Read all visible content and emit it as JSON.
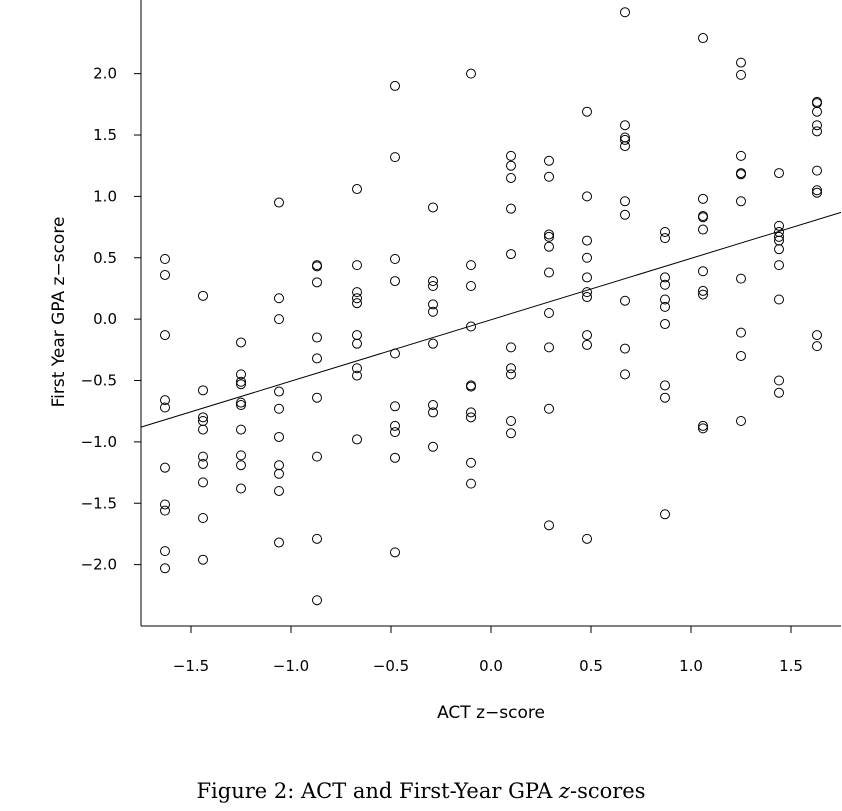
{
  "caption": {
    "prefix": "Figure 2: ACT and First-Year GPA ",
    "math": "z",
    "suffix": "-scores"
  },
  "chart_data": {
    "type": "scatter",
    "xlabel": "ACT z−score",
    "ylabel": "First Year GPA z−score",
    "xlim": [
      -1.75,
      1.75
    ],
    "ylim": [
      -2.5,
      2.6
    ],
    "xticks": [
      -1.5,
      -1.0,
      -0.5,
      0.0,
      0.5,
      1.0,
      1.5
    ],
    "xtick_labels": [
      "−1.5",
      "−1.0",
      "−0.5",
      "0.0",
      "0.5",
      "1.0",
      "1.5"
    ],
    "yticks": [
      -2.0,
      -1.5,
      -1.0,
      -0.5,
      0.0,
      0.5,
      1.0,
      1.5,
      2.0
    ],
    "ytick_labels": [
      "−2.0",
      "−1.5",
      "−1.0",
      "−0.5",
      "0.0",
      "0.5",
      "1.0",
      "1.5",
      "2.0"
    ],
    "grid": false,
    "regression_line": {
      "x": [
        -1.75,
        1.75
      ],
      "y": [
        -0.88,
        0.87
      ]
    },
    "series": [
      {
        "points": [
          [
            -1.63,
            0.49
          ],
          [
            -1.63,
            0.36
          ],
          [
            -1.63,
            -0.13
          ],
          [
            -1.63,
            -0.66
          ],
          [
            -1.63,
            -0.72
          ],
          [
            -1.63,
            -1.21
          ],
          [
            -1.63,
            -1.51
          ],
          [
            -1.63,
            -1.56
          ],
          [
            -1.63,
            -1.89
          ],
          [
            -1.63,
            -2.03
          ],
          [
            -1.44,
            0.19
          ],
          [
            -1.44,
            -0.58
          ],
          [
            -1.44,
            -0.8
          ],
          [
            -1.44,
            -0.83
          ],
          [
            -1.44,
            -0.9
          ],
          [
            -1.44,
            -1.12
          ],
          [
            -1.44,
            -1.18
          ],
          [
            -1.44,
            -1.33
          ],
          [
            -1.44,
            -1.62
          ],
          [
            -1.44,
            -1.96
          ],
          [
            -1.25,
            -0.19
          ],
          [
            -1.25,
            -0.45
          ],
          [
            -1.25,
            -0.51
          ],
          [
            -1.25,
            -0.53
          ],
          [
            -1.25,
            -0.68
          ],
          [
            -1.25,
            -0.7
          ],
          [
            -1.25,
            -0.9
          ],
          [
            -1.25,
            -1.11
          ],
          [
            -1.25,
            -1.19
          ],
          [
            -1.25,
            -1.38
          ],
          [
            -1.06,
            0.95
          ],
          [
            -1.06,
            0.17
          ],
          [
            -1.06,
            0.0
          ],
          [
            -1.06,
            -0.59
          ],
          [
            -1.06,
            -0.73
          ],
          [
            -1.06,
            -0.96
          ],
          [
            -1.06,
            -1.19
          ],
          [
            -1.06,
            -1.26
          ],
          [
            -1.06,
            -1.4
          ],
          [
            -1.06,
            -1.82
          ],
          [
            -0.87,
            0.44
          ],
          [
            -0.87,
            0.43
          ],
          [
            -0.87,
            0.3
          ],
          [
            -0.87,
            -0.15
          ],
          [
            -0.87,
            -0.32
          ],
          [
            -0.87,
            -0.64
          ],
          [
            -0.87,
            -1.12
          ],
          [
            -0.87,
            -1.79
          ],
          [
            -0.87,
            -2.29
          ],
          [
            -0.67,
            1.06
          ],
          [
            -0.67,
            0.44
          ],
          [
            -0.67,
            0.22
          ],
          [
            -0.67,
            0.17
          ],
          [
            -0.67,
            0.13
          ],
          [
            -0.67,
            -0.13
          ],
          [
            -0.67,
            -0.2
          ],
          [
            -0.67,
            -0.4
          ],
          [
            -0.67,
            -0.46
          ],
          [
            -0.67,
            -0.98
          ],
          [
            -0.48,
            1.9
          ],
          [
            -0.48,
            1.32
          ],
          [
            -0.48,
            0.49
          ],
          [
            -0.48,
            0.31
          ],
          [
            -0.48,
            -0.28
          ],
          [
            -0.48,
            -0.71
          ],
          [
            -0.48,
            -0.87
          ],
          [
            -0.48,
            -0.92
          ],
          [
            -0.48,
            -1.13
          ],
          [
            -0.48,
            -1.9
          ],
          [
            -0.29,
            0.91
          ],
          [
            -0.29,
            0.31
          ],
          [
            -0.29,
            0.27
          ],
          [
            -0.29,
            0.12
          ],
          [
            -0.29,
            0.06
          ],
          [
            -0.29,
            -0.2
          ],
          [
            -0.29,
            -0.7
          ],
          [
            -0.29,
            -0.76
          ],
          [
            -0.29,
            -1.04
          ],
          [
            -0.1,
            2.0
          ],
          [
            -0.1,
            0.44
          ],
          [
            -0.1,
            0.27
          ],
          [
            -0.1,
            -0.06
          ],
          [
            -0.1,
            -0.54
          ],
          [
            -0.1,
            -0.55
          ],
          [
            -0.1,
            -0.76
          ],
          [
            -0.1,
            -0.8
          ],
          [
            -0.1,
            -1.17
          ],
          [
            -0.1,
            -1.34
          ],
          [
            0.1,
            1.33
          ],
          [
            0.1,
            1.25
          ],
          [
            0.1,
            1.15
          ],
          [
            0.1,
            0.9
          ],
          [
            0.1,
            0.53
          ],
          [
            0.1,
            -0.23
          ],
          [
            0.1,
            -0.4
          ],
          [
            0.1,
            -0.45
          ],
          [
            0.1,
            -0.83
          ],
          [
            0.1,
            -0.93
          ],
          [
            0.29,
            1.29
          ],
          [
            0.29,
            1.16
          ],
          [
            0.29,
            0.69
          ],
          [
            0.29,
            0.67
          ],
          [
            0.29,
            0.59
          ],
          [
            0.29,
            0.38
          ],
          [
            0.29,
            0.05
          ],
          [
            0.29,
            -0.23
          ],
          [
            0.29,
            -0.73
          ],
          [
            0.29,
            -1.68
          ],
          [
            0.48,
            1.69
          ],
          [
            0.48,
            1.0
          ],
          [
            0.48,
            0.64
          ],
          [
            0.48,
            0.5
          ],
          [
            0.48,
            0.34
          ],
          [
            0.48,
            0.22
          ],
          [
            0.48,
            0.18
          ],
          [
            0.48,
            -0.13
          ],
          [
            0.48,
            -0.21
          ],
          [
            0.48,
            -1.79
          ],
          [
            0.67,
            2.5
          ],
          [
            0.67,
            1.58
          ],
          [
            0.67,
            1.48
          ],
          [
            0.67,
            1.46
          ],
          [
            0.67,
            1.41
          ],
          [
            0.67,
            0.96
          ],
          [
            0.67,
            0.85
          ],
          [
            0.67,
            0.15
          ],
          [
            0.67,
            -0.24
          ],
          [
            0.67,
            -0.45
          ],
          [
            0.87,
            0.71
          ],
          [
            0.87,
            0.66
          ],
          [
            0.87,
            0.34
          ],
          [
            0.87,
            0.28
          ],
          [
            0.87,
            0.16
          ],
          [
            0.87,
            0.1
          ],
          [
            0.87,
            -0.04
          ],
          [
            0.87,
            -0.54
          ],
          [
            0.87,
            -0.64
          ],
          [
            0.87,
            -1.59
          ],
          [
            1.06,
            2.29
          ],
          [
            1.06,
            0.98
          ],
          [
            1.06,
            0.84
          ],
          [
            1.06,
            0.83
          ],
          [
            1.06,
            0.73
          ],
          [
            1.06,
            0.39
          ],
          [
            1.06,
            0.23
          ],
          [
            1.06,
            0.2
          ],
          [
            1.06,
            -0.87
          ],
          [
            1.06,
            -0.89
          ],
          [
            1.25,
            2.09
          ],
          [
            1.25,
            1.99
          ],
          [
            1.25,
            1.33
          ],
          [
            1.25,
            1.19
          ],
          [
            1.25,
            1.18
          ],
          [
            1.25,
            0.96
          ],
          [
            1.25,
            0.33
          ],
          [
            1.25,
            -0.11
          ],
          [
            1.25,
            -0.3
          ],
          [
            1.25,
            -0.83
          ],
          [
            1.44,
            1.19
          ],
          [
            1.44,
            0.76
          ],
          [
            1.44,
            0.71
          ],
          [
            1.44,
            0.67
          ],
          [
            1.44,
            0.64
          ],
          [
            1.44,
            0.57
          ],
          [
            1.44,
            0.44
          ],
          [
            1.44,
            0.16
          ],
          [
            1.44,
            -0.5
          ],
          [
            1.44,
            -0.6
          ],
          [
            1.63,
            1.77
          ],
          [
            1.63,
            1.76
          ],
          [
            1.63,
            1.69
          ],
          [
            1.63,
            1.58
          ],
          [
            1.63,
            1.53
          ],
          [
            1.63,
            1.21
          ],
          [
            1.63,
            1.05
          ],
          [
            1.63,
            1.03
          ],
          [
            1.63,
            -0.13
          ],
          [
            1.63,
            -0.22
          ]
        ]
      }
    ]
  }
}
